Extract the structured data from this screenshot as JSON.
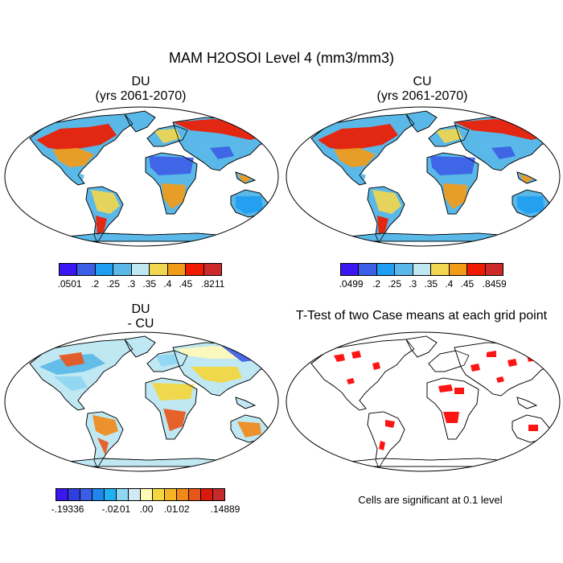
{
  "figure": {
    "title": "MAM H2OSOI Level 4 (mm3/mm3)",
    "panels": [
      {
        "name": "DU",
        "title1": "DU",
        "title2": "(yrs 2061-2070)"
      },
      {
        "name": "CU",
        "title1": "CU",
        "title2": "(yrs 2061-2070)"
      },
      {
        "name": "diff",
        "title1": "DU",
        "title2": "- CU"
      },
      {
        "name": "ttest",
        "title1": "T-Test of two Case means at each grid point",
        "title2": ""
      }
    ],
    "note": "Cells are significant at 0.1 level"
  },
  "colorbars": {
    "du": {
      "colors": [
        "#3b16f2",
        "#3c5ee6",
        "#1f9df0",
        "#5ab8e8",
        "#bfe8f3",
        "#f1d64f",
        "#f29b17",
        "#ee1b00",
        "#cc2a2a"
      ],
      "labels": [
        ".0501",
        ".2",
        ".25",
        ".3",
        ".35",
        ".4",
        ".45",
        ".8211"
      ]
    },
    "cu": {
      "colors": [
        "#3b16f2",
        "#3c5ee6",
        "#1f9df0",
        "#5ab8e8",
        "#bfe8f3",
        "#f1d64f",
        "#f29b17",
        "#ee1b00",
        "#cc2a2a"
      ],
      "labels": [
        ".0499",
        ".2",
        ".25",
        ".3",
        ".35",
        ".4",
        ".45",
        ".8459"
      ]
    },
    "diff": {
      "colors": [
        "#3b16f2",
        "#2f3fde",
        "#3c5ee6",
        "#1f86ec",
        "#1fb0f0",
        "#8fd6f2",
        "#cfeaf5",
        "#fff9b8",
        "#f4d63e",
        "#f5b326",
        "#f0891a",
        "#e9561a",
        "#d91a0d",
        "#c62a2a"
      ],
      "labels": [
        "-.19336",
        "-.02",
        "-.01",
        ".00",
        ".01",
        ".02",
        ".14889"
      ]
    }
  },
  "legend_labels": {
    "du": [
      ".0501",
      ".2",
      ".25",
      ".3",
      ".35",
      ".4",
      ".45",
      ".8211"
    ],
    "cu": [
      ".0499",
      ".2",
      ".25",
      ".3",
      ".35",
      ".4",
      ".45",
      ".8459"
    ],
    "diff": [
      "-.19336",
      "-.02",
      "-.01",
      ".00",
      ".01",
      ".02",
      ".14889"
    ]
  },
  "colors": {
    "outline": "#000000",
    "significance": "#ff0000"
  }
}
